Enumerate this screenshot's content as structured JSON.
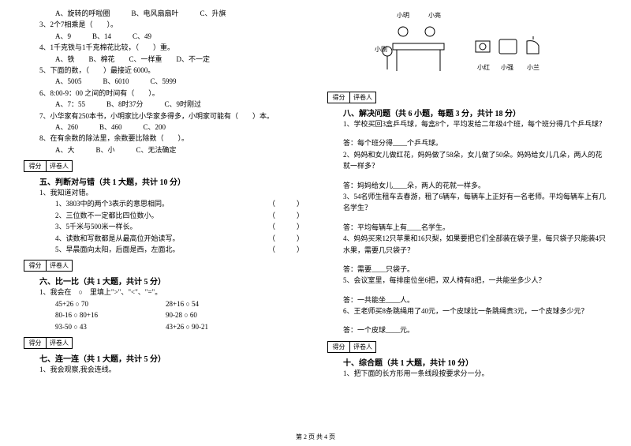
{
  "leftCol": {
    "q3_intro_a": "A、旋转的呼啦圈　　　B、电风扇扇叶　　　C、升旗",
    "q3": "3、2个7相乘是（　　）。",
    "q3_opts": "A、9　　　B、14　　　C、49",
    "q4": "4、1千克铁与1千克棉花比较，（　　）重。",
    "q4_opts": "A、铁　　B、棉花　　C、一样重　　D、不一定",
    "q5": "5、下面的数，（　　）最接近 6000。",
    "q5_opts": "A、5005　　　B、6010　　　C、5999",
    "q6": "6、8:00-9：00 之间的时间有（　　）。",
    "q6_opts": "A、7：55　　　B、8时37分　　　C、9时刚过",
    "q7": "7、小华家有250本书，小明家比小华家多得多，小明家可能有（　　）本。",
    "q7_opts": "A、260　　　B、460　　　C、200",
    "q8": "8、在有余数的除法里，余数要比除数（　　）。",
    "q8_opts": "A、大　　　B、小　　　C、无法确定",
    "scoreLabels": {
      "score": "得分",
      "reviewer": "评卷人"
    },
    "sec5_title": "五、判断对与错（共 1 大题，共计 10 分）",
    "sec5_lead": "1、我知道对错。",
    "sec5_items": [
      "1、3803中的两个3表示的意思相同。",
      "2、三位数不一定都比四位数小。",
      "3、5千米与500米一样长。",
      "4、读数和写数都是从最高位开始读写。",
      "5、早晨面向太阳，后面是西，左面北。"
    ],
    "sec5_paren": "（　　　）",
    "sec6_title": "六、比一比（共 1 大题，共计 5 分）",
    "sec6_lead": "1、我会在　○　里填上\">\"、\"<\"、\"=\"。",
    "sec6_rows": [
      [
        "45+26 ○ 70",
        "28+16 ○ 54"
      ],
      [
        "80-16 ○ 80+16",
        "90-28 ○ 60"
      ],
      [
        "93-50 ○ 43",
        "43+26 ○ 90-21"
      ]
    ],
    "sec7_title": "七、连一连（共 1 大题，共计 5 分）",
    "sec7_lead": "1、我会观察,我会连线。"
  },
  "rightCol": {
    "illus": {
      "topLabels": {
        "left": "小明",
        "right": "小亮"
      },
      "sideLabel": "小刚",
      "bottomLabels": [
        "小红",
        "小强",
        "小兰"
      ]
    },
    "scoreLabels": {
      "score": "得分",
      "reviewer": "评卷人"
    },
    "sec8_title": "八、解决问题（共 6 小题，每题 3 分，共计 18 分）",
    "sec8_q1": "1、学校买回3盒乒乓球，每盒8个，平均发给二年级4个班，每个班分得几个乒乓球？",
    "sec8_a1": "答：每个班分得____个乒乓球。",
    "sec8_q2": "2、妈妈和女儿做红花，妈妈做了58朵，女儿做了50朵。妈妈给女儿几朵，两人的花就一样多？",
    "sec8_a2": "答：妈妈给女儿____朵，两人的花就一样多。",
    "sec8_q3": "3、54名师生租车去春游，租了6辆车，每辆车上正好有一名老师。平均每辆车上有几名学生？",
    "sec8_a3": "答：平均每辆车上有____名学生。",
    "sec8_q4": "4、妈妈买来12只苹果和16只梨，如果要把它们全部装在袋子里，每只袋子只能装4只水果，需要几只袋子？",
    "sec8_a4": "答：需要____只袋子。",
    "sec8_q5": "5、会议室里，每排座位坐6把，双人椅有8把，一共能坐多少人？",
    "sec8_a5": "答：一共能坐____人。",
    "sec8_q6": "6、王老师买8条跳绳用了40元，一个皮球比一条跳绳贵3元，一个皮球多少元？",
    "sec8_a6": "答：一个皮球____元。",
    "sec10_title": "十、综合题（共 1 大题，共计 10 分）",
    "sec10_lead": "1、把下面的长方形用一条线段按要求分一分。"
  },
  "footer": "第 2 页 共 4 页",
  "colors": {
    "text": "#000000",
    "bg": "#ffffff",
    "line": "#888888"
  }
}
